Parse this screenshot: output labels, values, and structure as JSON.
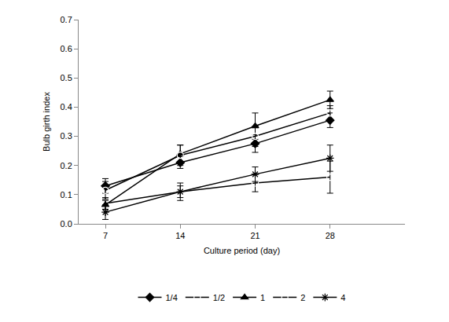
{
  "chart_data": {
    "type": "line",
    "x_label": "Culture period (day)",
    "y_label": "Bulb girth index",
    "x": [
      7,
      14,
      21,
      28
    ],
    "xlim": [
      4.5,
      35
    ],
    "xticks": [
      7,
      14,
      21,
      28
    ],
    "ylim": [
      0,
      0.7
    ],
    "yticks": [
      {
        "value": 0,
        "label": "0.0"
      },
      0.1,
      0.2,
      0.3,
      0.4,
      0.5,
      0.6,
      0.7
    ],
    "grid": false,
    "legend": "bottom",
    "series": [
      {
        "name": "1/4",
        "color": "#000000",
        "marker": "diamond",
        "line_style": "solid",
        "values": [
          0.13,
          0.21,
          0.275,
          0.355
        ],
        "errors": [
          0.025,
          0.02,
          0.03,
          0.025
        ]
      },
      {
        "name": "1/2",
        "color": "#000000",
        "marker": "square-open",
        "line_style": "solid",
        "values": [
          0.07,
          0.11,
          0.14,
          0.16
        ],
        "errors": [
          0.02,
          0.03,
          0.03,
          0.055
        ]
      },
      {
        "name": "1",
        "color": "#000000",
        "marker": "triangle-up",
        "line_style": "solid",
        "values": [
          0.065,
          0.24,
          0.335,
          0.425
        ],
        "errors": [
          0.015,
          0.03,
          0.045,
          0.03
        ]
      },
      {
        "name": "2",
        "color": "#000000",
        "marker": "circle-open",
        "line_style": "solid",
        "values": [
          0.115,
          0.235,
          0.3,
          0.38
        ],
        "errors": [
          0.03,
          0.035,
          0.035,
          0.025
        ]
      },
      {
        "name": "4",
        "color": "#000000",
        "marker": "asterisk-open",
        "line_style": "solid",
        "values": [
          0.04,
          0.11,
          0.17,
          0.225
        ],
        "errors": [
          0.025,
          0.02,
          0.025,
          0.045
        ]
      }
    ]
  }
}
